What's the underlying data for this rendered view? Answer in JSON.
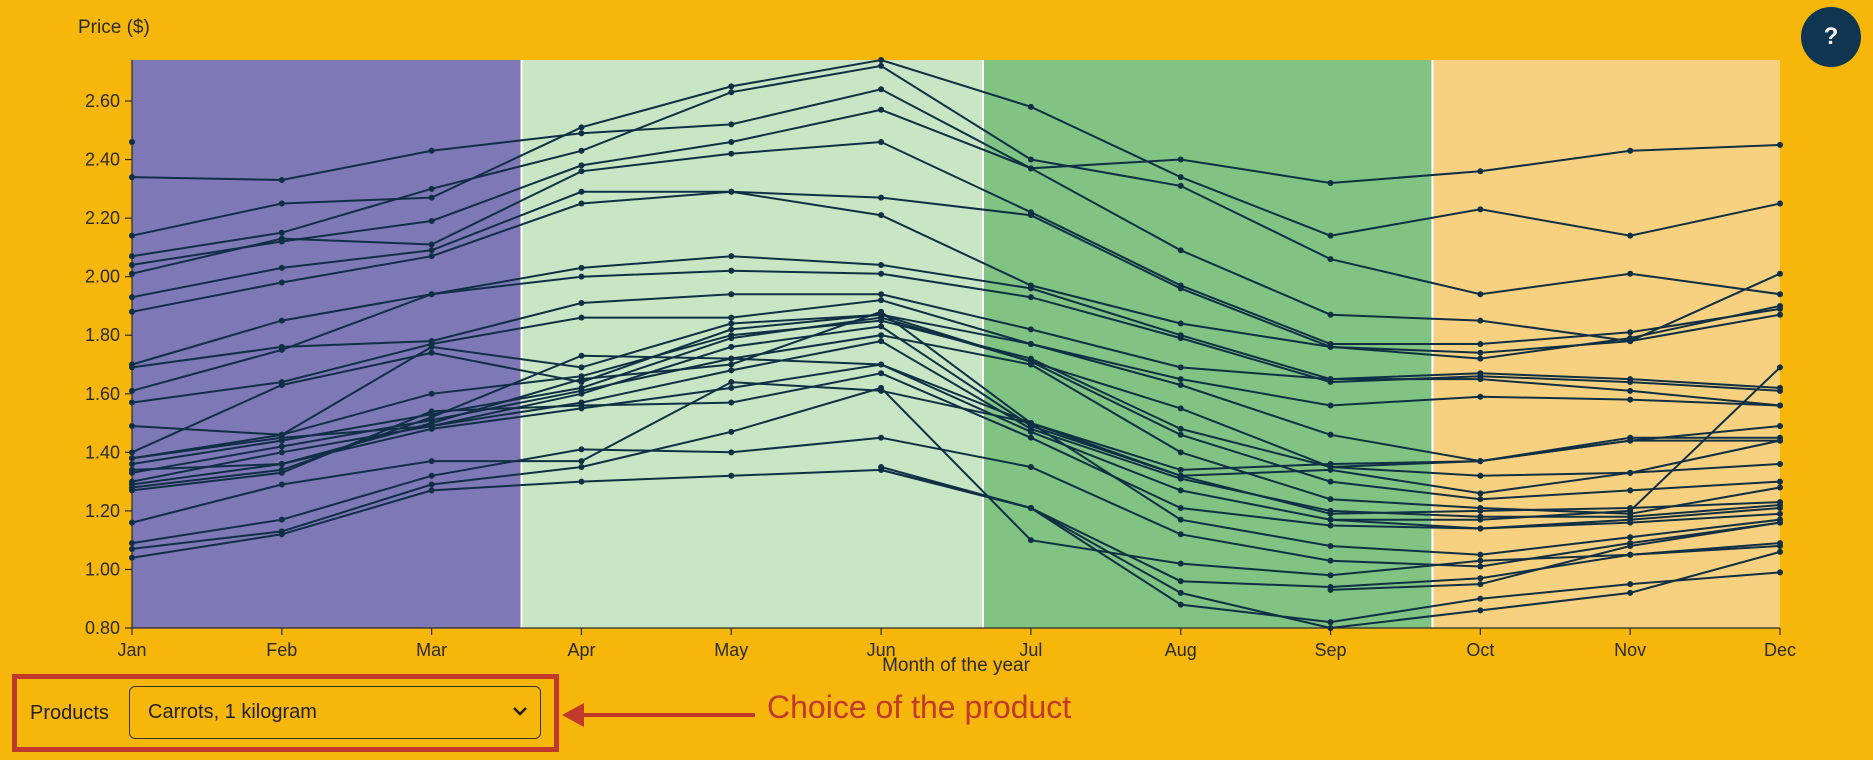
{
  "help": {
    "label": "?"
  },
  "selector": {
    "label": "Products",
    "value": "Carrots, 1 kilogram"
  },
  "annotation": {
    "text": "Choice of the product"
  },
  "colors": {
    "background": "#f7b60a",
    "winter": "#7e78b7",
    "spring": "#c8e6c4",
    "summer": "#80c383",
    "autumn": "#f7d17f",
    "line": "#0f2f45",
    "annotation": "#c0392b"
  },
  "chart_data": {
    "type": "line",
    "xlabel": "Month of the year",
    "ylabel": "Price ($)",
    "ylim": [
      0.8,
      2.74
    ],
    "categories": [
      "Jan",
      "Feb",
      "Mar",
      "Apr",
      "May",
      "Jun",
      "Jul",
      "Aug",
      "Sep",
      "Oct",
      "Nov",
      "Dec"
    ],
    "yticks": [
      "0.80",
      "1.00",
      "1.20",
      "1.40",
      "1.60",
      "1.80",
      "2.00",
      "2.20",
      "2.40",
      "2.60"
    ],
    "season_bands": [
      {
        "from": 0,
        "to": 2.6,
        "color": "#7e78b7"
      },
      {
        "from": 2.6,
        "to": 5.68,
        "color": "#c8e6c4"
      },
      {
        "from": 5.68,
        "to": 8.68,
        "color": "#80c383"
      },
      {
        "from": 8.68,
        "to": 11,
        "color": "#f7d17f"
      }
    ],
    "series": [
      {
        "values": [
          2.34,
          2.33,
          2.43,
          2.49,
          2.52,
          2.64,
          2.37,
          2.4,
          2.32,
          2.36,
          2.43,
          2.45
        ]
      },
      {
        "values": [
          2.14,
          2.25,
          2.27,
          2.51,
          2.65,
          2.74,
          2.58,
          2.34,
          2.14,
          2.23,
          2.14,
          2.25
        ]
      },
      {
        "values": [
          2.07,
          2.15,
          2.3,
          2.43,
          2.63,
          2.72,
          2.4,
          2.31,
          2.06,
          1.94,
          2.01,
          1.94
        ]
      },
      {
        "values": [
          2.04,
          2.12,
          2.19,
          2.38,
          2.46,
          2.57,
          2.37,
          2.09,
          1.87,
          1.85,
          1.78,
          2.01
        ]
      },
      {
        "values": [
          2.01,
          2.13,
          2.11,
          2.36,
          2.42,
          2.46,
          2.22,
          1.97,
          1.77,
          1.77,
          1.81,
          1.89
        ]
      },
      {
        "values": [
          1.93,
          2.03,
          2.09,
          2.29,
          2.29,
          2.27,
          2.21,
          1.96,
          1.76,
          1.72,
          1.79,
          1.9
        ]
      },
      {
        "values": [
          1.88,
          1.98,
          2.07,
          2.25,
          2.29,
          2.21,
          1.97,
          1.84,
          1.76,
          1.74,
          1.78,
          1.87
        ]
      },
      {
        "values": [
          1.7,
          1.85,
          1.94,
          2.03,
          2.07,
          2.04,
          1.96,
          1.8,
          1.65,
          1.67,
          1.65,
          1.62
        ]
      },
      {
        "values": [
          1.61,
          1.75,
          1.94,
          2.0,
          2.02,
          2.01,
          1.93,
          1.79,
          1.64,
          1.66,
          1.64,
          1.61
        ]
      },
      {
        "values": [
          1.69,
          1.76,
          1.78,
          1.91,
          1.94,
          1.94,
          1.82,
          1.69,
          1.65,
          1.65,
          1.61,
          1.56
        ]
      },
      {
        "values": [
          1.57,
          1.64,
          1.77,
          1.86,
          1.86,
          1.92,
          1.77,
          1.65,
          1.56,
          1.59,
          1.58,
          1.56
        ]
      },
      {
        "values": [
          1.49,
          1.46,
          1.76,
          1.69,
          1.84,
          1.87,
          1.77,
          1.63,
          1.46,
          1.37,
          1.45,
          1.45
        ]
      },
      {
        "values": [
          1.4,
          1.63,
          1.74,
          1.64,
          1.82,
          1.87,
          1.71,
          1.55,
          1.35,
          1.37,
          1.44,
          1.44
        ]
      },
      {
        "values": [
          1.38,
          1.46,
          1.6,
          1.66,
          1.8,
          1.85,
          1.72,
          1.48,
          1.35,
          1.32,
          1.33,
          1.36
        ]
      },
      {
        "values": [
          1.36,
          1.44,
          1.53,
          1.62,
          1.79,
          1.86,
          1.71,
          1.46,
          1.3,
          1.24,
          1.27,
          1.3
        ]
      },
      {
        "values": [
          1.33,
          1.42,
          1.51,
          1.61,
          1.72,
          1.8,
          1.7,
          1.4,
          1.24,
          1.21,
          1.19,
          1.28
        ]
      },
      {
        "values": [
          1.3,
          1.4,
          1.49,
          1.57,
          1.68,
          1.78,
          1.48,
          1.31,
          1.2,
          1.18,
          1.18,
          1.22
        ]
      },
      {
        "values": [
          1.29,
          1.36,
          1.48,
          1.55,
          1.62,
          1.7,
          1.47,
          1.27,
          1.17,
          1.14,
          1.17,
          1.21
        ]
      },
      {
        "values": [
          1.27,
          1.33,
          1.54,
          1.56,
          1.57,
          1.67,
          1.45,
          1.21,
          1.15,
          1.14,
          1.16,
          1.19
        ]
      },
      {
        "values": [
          1.16,
          1.29,
          1.37,
          1.37,
          1.64,
          1.61,
          1.5,
          1.17,
          1.08,
          1.05,
          1.11,
          1.17
        ]
      },
      {
        "values": [
          1.09,
          1.17,
          1.32,
          1.41,
          1.4,
          1.45,
          1.35,
          1.12,
          1.03,
          1.01,
          1.09,
          1.16
        ]
      },
      {
        "values": [
          1.07,
          1.13,
          1.29,
          1.35,
          1.47,
          1.62,
          1.1,
          1.02,
          0.98,
          1.03,
          1.05,
          1.09
        ]
      },
      {
        "values": [
          1.04,
          1.12,
          1.27,
          1.3,
          1.32,
          1.34,
          1.21,
          0.96,
          0.94,
          0.97,
          1.05,
          1.08
        ]
      },
      {
        "values": [
          1.28,
          1.34,
          1.52,
          1.73,
          1.72,
          1.7,
          1.5,
          1.32,
          1.19,
          1.2,
          1.21,
          1.23
        ]
      },
      {
        "values": [
          1.34,
          1.36,
          1.5,
          1.65,
          1.7,
          1.88,
          1.5,
          1.34,
          1.36,
          1.37,
          1.44,
          1.49
        ]
      },
      {
        "values": [
          1.38,
          1.45,
          1.49,
          1.6,
          1.76,
          1.83,
          1.49,
          1.32,
          1.34,
          1.26,
          1.33,
          1.44
        ]
      },
      {
        "values": [
          2.46,
          null,
          null,
          null,
          null,
          null,
          null,
          null,
          null,
          null,
          null,
          null
        ]
      },
      {
        "values": [
          null,
          null,
          null,
          null,
          null,
          1.35,
          1.21,
          0.92,
          0.8,
          0.86,
          0.92,
          1.06
        ]
      },
      {
        "values": [
          null,
          null,
          null,
          null,
          null,
          1.34,
          1.21,
          0.88,
          0.82,
          0.9,
          0.95,
          0.99
        ]
      },
      {
        "values": [
          null,
          null,
          null,
          null,
          null,
          null,
          null,
          null,
          0.93,
          0.95,
          1.08,
          1.16
        ]
      },
      {
        "values": [
          null,
          null,
          null,
          null,
          null,
          null,
          null,
          null,
          1.17,
          1.17,
          1.2,
          1.69
        ]
      }
    ]
  }
}
